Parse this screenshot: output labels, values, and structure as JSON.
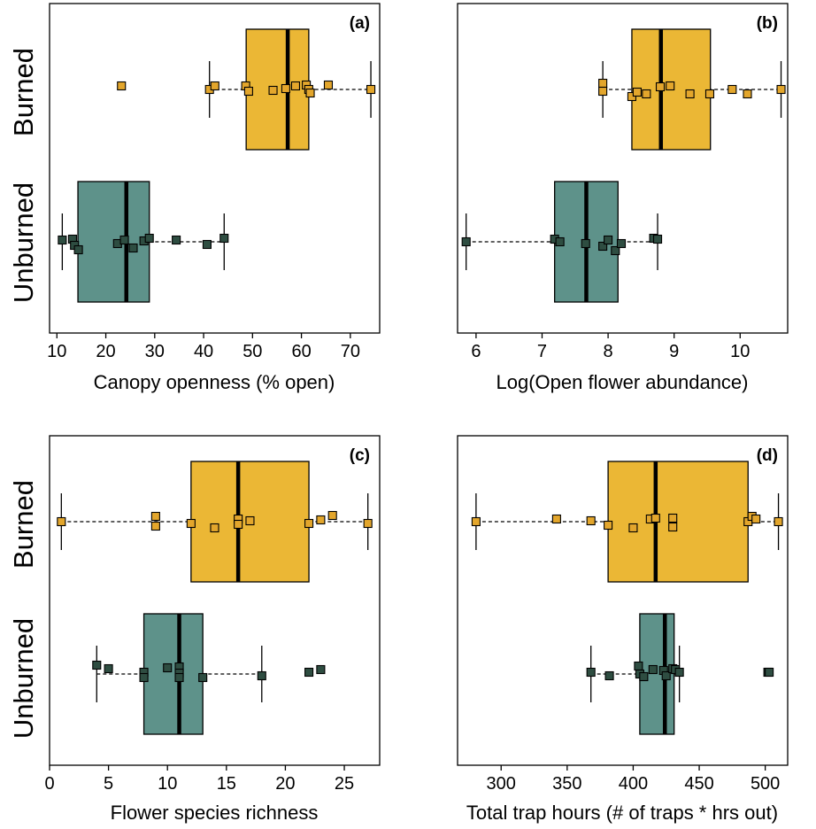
{
  "colors": {
    "burned_fill": "#EBB735",
    "unburned_fill": "#5E928A",
    "burned_point": "#E3A62C",
    "unburned_point": "#2E4D41",
    "stroke": "#000000"
  },
  "group_labels": [
    "Burned",
    "Unburned"
  ],
  "chart_data": [
    {
      "type": "box",
      "panel_label": "(a)",
      "xlabel": "Canopy openness (% open)",
      "ylabel": "",
      "xlim": [
        8.5,
        76
      ],
      "ticks": [
        10,
        20,
        30,
        40,
        50,
        60,
        70
      ],
      "groups": [
        {
          "name": "Burned",
          "min": 41.2,
          "q1": 48.7,
          "median": 57.2,
          "q3": 61.5,
          "max": 74.2,
          "points": [
            23.2,
            41.2,
            42.3,
            48.6,
            49.2,
            54.2,
            56.8,
            58.8,
            61.0,
            61.5,
            61.8,
            65.5,
            74.2
          ],
          "jitter": [
            -4,
            0,
            -4,
            -4,
            2,
            1,
            -1,
            -4,
            -5,
            0,
            4,
            -5,
            0
          ]
        },
        {
          "name": "Unburned",
          "min": 11.1,
          "q1": 14.3,
          "median": 24.2,
          "q3": 28.9,
          "max": 44.2,
          "points": [
            11.1,
            13.2,
            13.6,
            14.4,
            22.4,
            23.8,
            25.6,
            27.8,
            28.9,
            34.4,
            40.7,
            44.2
          ],
          "jitter": [
            -2,
            -3,
            4,
            9,
            2,
            -2,
            7,
            -1,
            -4,
            -2,
            3,
            -4
          ]
        }
      ]
    },
    {
      "type": "box",
      "panel_label": "(b)",
      "xlabel": "Log(Open flower abundance)",
      "ylabel": "",
      "xlim": [
        5.72,
        10.72
      ],
      "ticks": [
        6,
        7,
        8,
        9,
        10
      ],
      "groups": [
        {
          "name": "Burned",
          "min": 7.92,
          "q1": 8.36,
          "median": 8.8,
          "q3": 9.55,
          "max": 10.62,
          "points": [
            7.92,
            7.92,
            8.36,
            8.44,
            8.58,
            8.79,
            8.94,
            9.24,
            9.54,
            9.88,
            10.11,
            10.62
          ],
          "jitter": [
            -7,
            2,
            8,
            3,
            5,
            -3,
            -4,
            5,
            5,
            0,
            5,
            0
          ]
        },
        {
          "name": "Unburned",
          "min": 5.85,
          "q1": 7.19,
          "median": 7.67,
          "q3": 8.15,
          "max": 8.75,
          "points": [
            5.85,
            7.19,
            7.27,
            7.66,
            7.92,
            8.0,
            8.11,
            8.2,
            8.69,
            8.75
          ],
          "jitter": [
            0,
            -3,
            0,
            2,
            5,
            -2,
            10,
            2,
            -4,
            -3
          ]
        }
      ]
    },
    {
      "type": "box",
      "panel_label": "(c)",
      "xlabel": "Flower species richness",
      "ylabel": "",
      "xlim": [
        0,
        28
      ],
      "ticks": [
        0,
        5,
        10,
        15,
        20,
        25
      ],
      "groups": [
        {
          "name": "Burned",
          "min": 1,
          "q1": 12,
          "median": 16,
          "q3": 22,
          "max": 27,
          "points": [
            1,
            9,
            9,
            12,
            14,
            16,
            16,
            17,
            22,
            23,
            24,
            27
          ],
          "jitter": [
            0,
            -6,
            5,
            2,
            7,
            -3,
            3,
            -1,
            2,
            -2,
            -7,
            2
          ],
          "ylabel_points_note": ""
        },
        {
          "name": "Unburned",
          "min": 4,
          "q1": 8,
          "median": 11,
          "q3": 13,
          "max": 18,
          "points": [
            4,
            5,
            8,
            8,
            10,
            11,
            11,
            11,
            13,
            18,
            22,
            23
          ],
          "jitter": [
            -10,
            -6,
            -2,
            4,
            -7,
            -8,
            -1,
            4,
            4,
            2,
            -2,
            -5
          ]
        }
      ]
    },
    {
      "type": "box",
      "panel_label": "(d)",
      "xlabel": "Total trap hours (# of traps * hrs out)",
      "ylabel": "",
      "xlim": [
        267,
        517
      ],
      "ticks": [
        300,
        350,
        400,
        450,
        500
      ],
      "groups": [
        {
          "name": "Burned",
          "min": 281,
          "q1": 381,
          "median": 417,
          "q3": 487,
          "max": 510,
          "points": [
            281,
            342,
            368,
            381,
            400,
            413,
            417,
            430,
            430,
            487,
            490,
            493,
            510
          ],
          "jitter": [
            0,
            -3,
            -1,
            4,
            7,
            -3,
            -4,
            -4,
            6,
            0,
            -6,
            -3,
            0
          ]
        },
        {
          "name": "Unburned",
          "min": 368,
          "q1": 405,
          "median": 424,
          "q3": 431,
          "max": 435,
          "points": [
            368,
            382,
            404,
            405,
            408,
            415,
            423,
            425,
            430,
            432,
            435,
            502,
            503
          ],
          "jitter": [
            -2,
            2,
            -9,
            0,
            3,
            -5,
            -4,
            2,
            -6,
            -5,
            -2,
            -2,
            -2
          ]
        }
      ]
    }
  ]
}
